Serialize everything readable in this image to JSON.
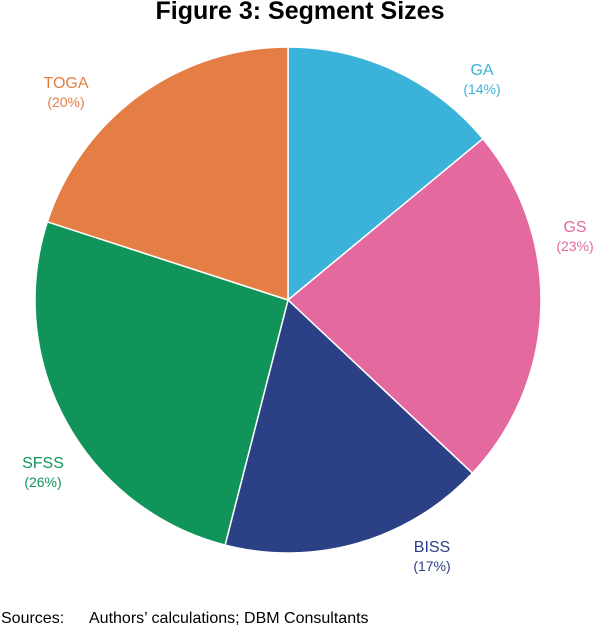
{
  "chart_data": {
    "type": "pie",
    "title": "Figure 3: Segment Sizes",
    "slices": [
      {
        "label": "GA",
        "percent_label": "(14%)",
        "value": 14,
        "color": "#3bb2d9"
      },
      {
        "label": "GS",
        "percent_label": "(23%)",
        "value": 23,
        "color": "#e3699f"
      },
      {
        "label": "BISS",
        "percent_label": "(17%)",
        "value": 17,
        "color": "#2c4185"
      },
      {
        "label": "SFSS",
        "percent_label": "(26%)",
        "value": 26,
        "color": "#119459"
      },
      {
        "label": "TOGA",
        "percent_label": "(20%)",
        "value": 20,
        "color": "#e47e44"
      }
    ],
    "start": "12 o'clock",
    "direction": "clockwise",
    "legend": "none (labels placed next to slices)"
  },
  "source": {
    "label": "Sources:",
    "text": "Authors’ calculations; DBM Consultants"
  }
}
